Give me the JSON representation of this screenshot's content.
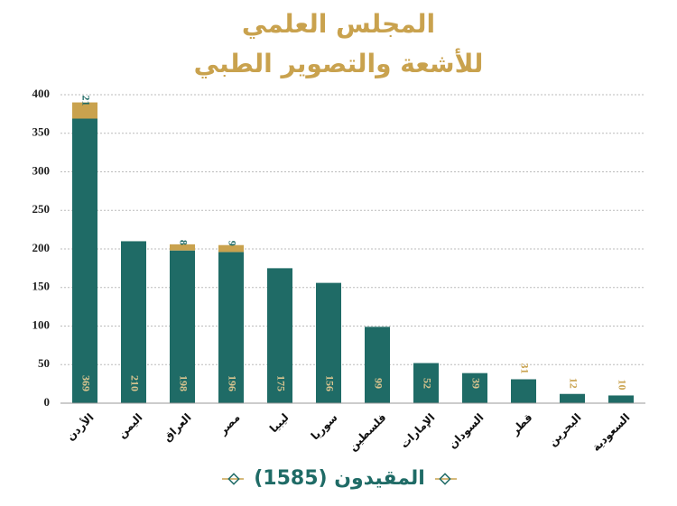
{
  "chart_data": {
    "type": "stacked_bar",
    "title": [
      "المجلس العلمي",
      "للأشعة والتصوير الطبي"
    ],
    "x_label": "المقيدون  (1585)",
    "categories": [
      "الأردن",
      "اليمن",
      "العراق",
      "مصر",
      "ليبيا",
      "سوريا",
      "فلسطين",
      "الإمارات",
      "السودان",
      "قطر",
      "البحرين",
      "السعودية"
    ],
    "series": [
      {
        "color": "#1f6b66",
        "values": [
          369,
          210,
          198,
          196,
          175,
          156,
          99,
          52,
          39,
          31,
          12,
          10
        ]
      },
      {
        "color": "#c9a24e",
        "values": [
          21,
          null,
          8,
          9,
          null,
          null,
          null,
          null,
          null,
          null,
          null,
          null
        ]
      }
    ],
    "ylim": [
      0,
      400
    ],
    "yticks": [
      0,
      50,
      100,
      150,
      200,
      250,
      300,
      350,
      400
    ],
    "grid": true
  }
}
